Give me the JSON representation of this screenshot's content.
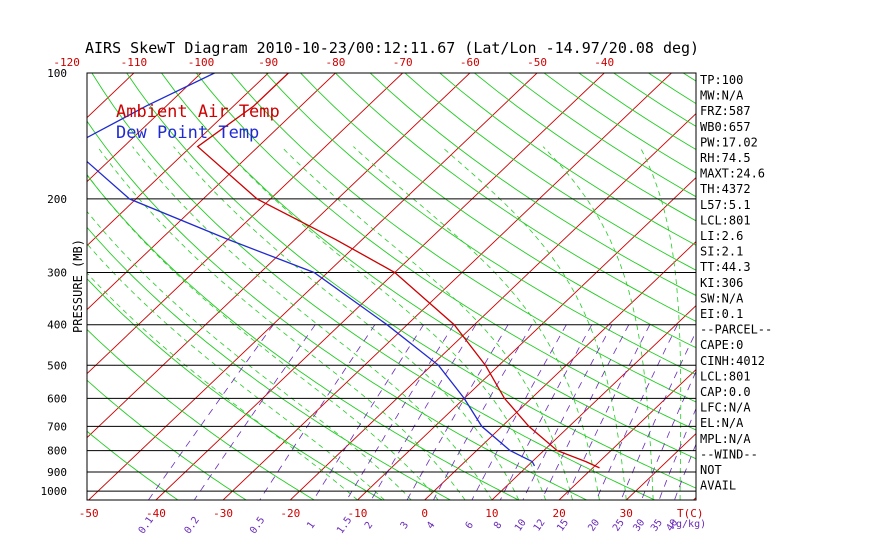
{
  "chart_data": {
    "type": "line",
    "title": "AIRS SkewT Diagram 2010-10-23/00:12:11.67 (Lat/Lon -14.97/20.08 deg)",
    "ylabel": "PRESSURE (MB)",
    "xlabel_bottom_unit": "T(C)",
    "mixing_ratio_unit": "(g/kg)",
    "pressure_ticks": [
      100,
      200,
      300,
      400,
      500,
      600,
      700,
      800,
      900,
      1000
    ],
    "top_temp_ticks": [
      -120,
      -110,
      -100,
      -90,
      -80,
      -70,
      -60,
      -50,
      -40
    ],
    "bottom_temp_ticks": [
      -50,
      -40,
      -30,
      -20,
      -10,
      0,
      10,
      20,
      30
    ],
    "mixing_ratio_ticks": [
      "0.1",
      "0.2",
      "0.5",
      "1",
      "1.5",
      "2",
      "3",
      "4",
      "6",
      "8",
      "10",
      "12",
      "15",
      "20",
      "25",
      "30",
      "35",
      "40"
    ],
    "legend": [
      {
        "label": "Ambient Air Temp",
        "color": "#cc0000"
      },
      {
        "label": "Dew Point Temp",
        "color": "#1f2bd0"
      }
    ],
    "series": [
      {
        "name": "Ambient Air Temp",
        "color": "#cc0000",
        "points": [
          {
            "p": 100,
            "t": -87
          },
          {
            "p": 120,
            "t": -87
          },
          {
            "p": 150,
            "t": -89
          },
          {
            "p": 200,
            "t": -72
          },
          {
            "p": 250,
            "t": -54
          },
          {
            "p": 300,
            "t": -40
          },
          {
            "p": 400,
            "t": -23
          },
          {
            "p": 500,
            "t": -12
          },
          {
            "p": 600,
            "t": -4
          },
          {
            "p": 700,
            "t": 4
          },
          {
            "p": 800,
            "t": 12
          },
          {
            "p": 850,
            "t": 18
          },
          {
            "p": 880,
            "t": 21
          }
        ]
      },
      {
        "name": "Dew Point Temp",
        "color": "#1f2bd0",
        "points": [
          {
            "p": 100,
            "t": -98
          },
          {
            "p": 120,
            "t": -103
          },
          {
            "p": 150,
            "t": -108
          },
          {
            "p": 200,
            "t": -91
          },
          {
            "p": 250,
            "t": -70
          },
          {
            "p": 300,
            "t": -52
          },
          {
            "p": 400,
            "t": -33
          },
          {
            "p": 500,
            "t": -19
          },
          {
            "p": 600,
            "t": -10
          },
          {
            "p": 700,
            "t": -3
          },
          {
            "p": 800,
            "t": 5
          },
          {
            "p": 850,
            "t": 10
          },
          {
            "p": 870,
            "t": 11
          }
        ]
      }
    ],
    "grid": true,
    "colors": {
      "isotherm": "#cc0000",
      "dry_adiabat": "#22cc22",
      "moist_adiabat": "#22cc22",
      "mixing_ratio": "#6a2bb8",
      "isobar": "#000000"
    },
    "stats": [
      "TP:100",
      "MW:N/A",
      "FRZ:587",
      "WB0:657",
      "PW:17.02",
      "RH:74.5",
      "MAXT:24.6",
      "TH:4372",
      "L57:5.1",
      "LCL:801",
      "LI:2.6",
      "SI:2.1",
      "TT:44.3",
      "KI:306",
      "SW:N/A",
      "EI:0.1",
      "--PARCEL--",
      "CAPE:0",
      "CINH:4012",
      "LCL:801",
      "CAP:0.0",
      "LFC:N/A",
      "EL:N/A",
      "MPL:N/A",
      "--WIND--",
      "NOT",
      "AVAIL"
    ]
  }
}
